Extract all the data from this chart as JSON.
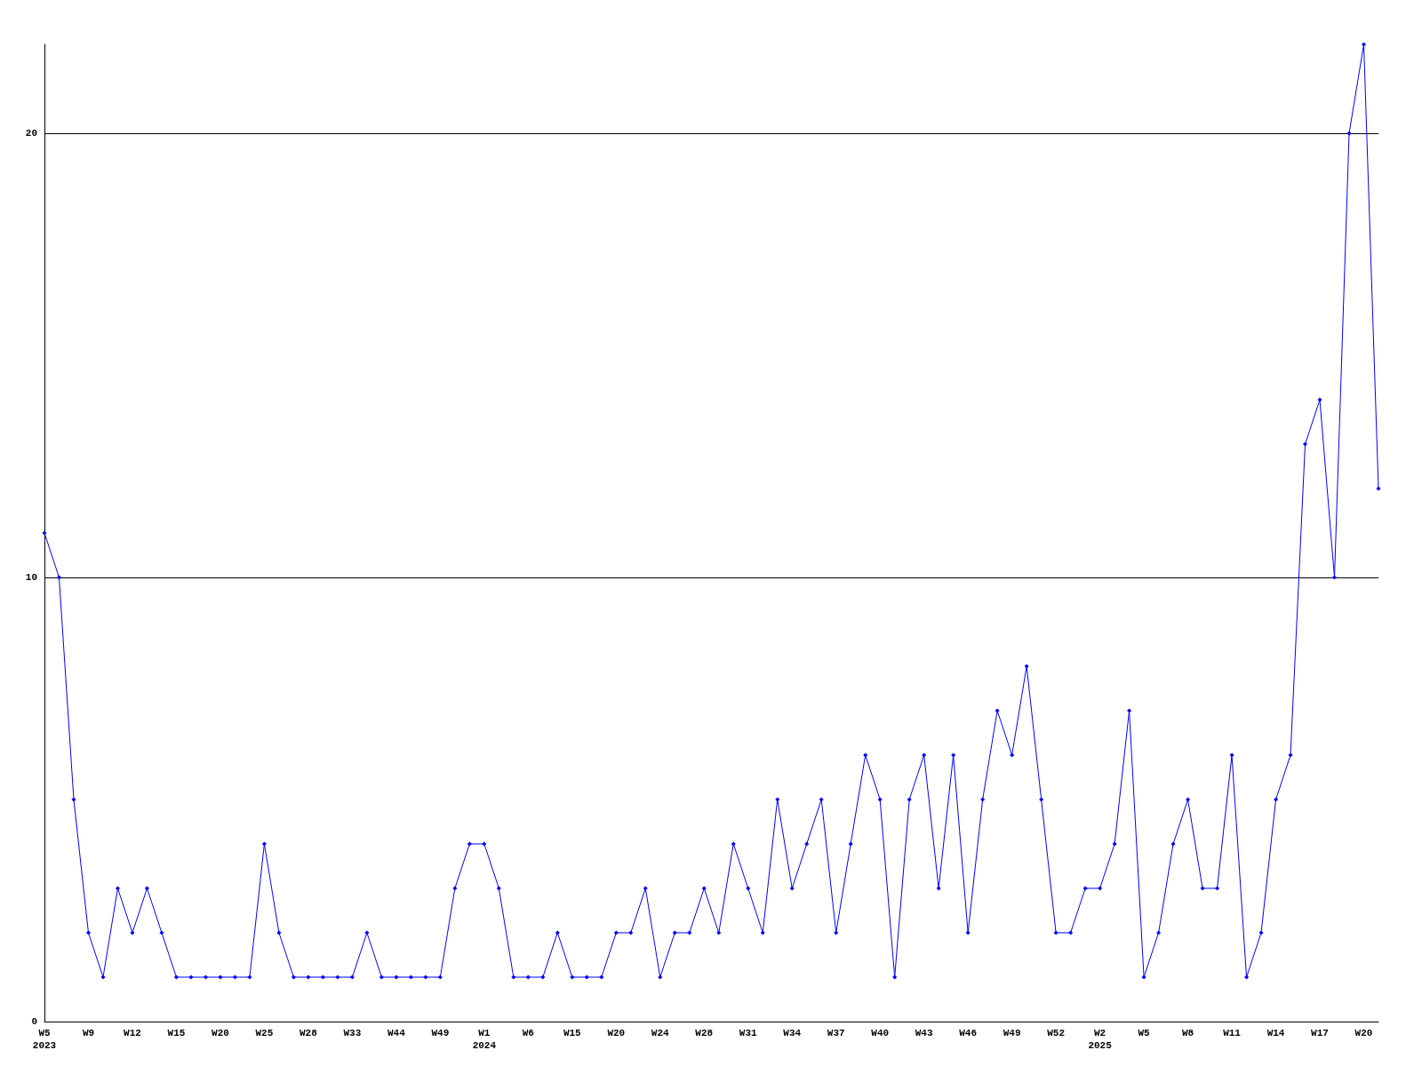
{
  "chart_data": {
    "type": "line",
    "categories": [
      "W5\n2023",
      null,
      null,
      "W9",
      null,
      null,
      "W12",
      null,
      null,
      "W15",
      null,
      null,
      "W20",
      null,
      null,
      "W25",
      null,
      null,
      "W28",
      null,
      null,
      "W33",
      null,
      null,
      "W44",
      null,
      null,
      "W49",
      null,
      null,
      "W1\n2024",
      null,
      null,
      "W6",
      null,
      null,
      "W15",
      null,
      null,
      "W20",
      null,
      null,
      "W24",
      null,
      null,
      "W28",
      null,
      null,
      "W31",
      null,
      null,
      "W34",
      null,
      null,
      "W37",
      null,
      null,
      "W40",
      null,
      null,
      "W43",
      null,
      null,
      "W46",
      null,
      null,
      "W49",
      null,
      null,
      "W52",
      null,
      null,
      "W2\n2025",
      null,
      null,
      "W5",
      null,
      null,
      "W8",
      null,
      null,
      "W11",
      null,
      null,
      "W14",
      null,
      null,
      "W17",
      null,
      null,
      "W20",
      null
    ],
    "series": [
      {
        "color": "#0000ff",
        "values": [
          11,
          10,
          5,
          2,
          1,
          3,
          2,
          3,
          2,
          1,
          1,
          1,
          1,
          1,
          1,
          4,
          2,
          1,
          1,
          1,
          1,
          1,
          2,
          1,
          1,
          1,
          1,
          1,
          3,
          4,
          4,
          3,
          1,
          1,
          1,
          2,
          1,
          1,
          1,
          2,
          2,
          3,
          1,
          2,
          2,
          3,
          2,
          4,
          3,
          2,
          5,
          3,
          4,
          5,
          2,
          4,
          6,
          5,
          1,
          5,
          6,
          3,
          6,
          2,
          5,
          7,
          6,
          8,
          5,
          2,
          2,
          3,
          3,
          4,
          7,
          1,
          2,
          4,
          5,
          3,
          3,
          6,
          1,
          2,
          5,
          6,
          13,
          14,
          10,
          20,
          22,
          12
        ]
      }
    ],
    "ylim": [
      0,
      22
    ],
    "yticks": [
      0,
      10,
      20
    ],
    "grid": "y",
    "marker": "diamond",
    "line_style": "solid"
  }
}
